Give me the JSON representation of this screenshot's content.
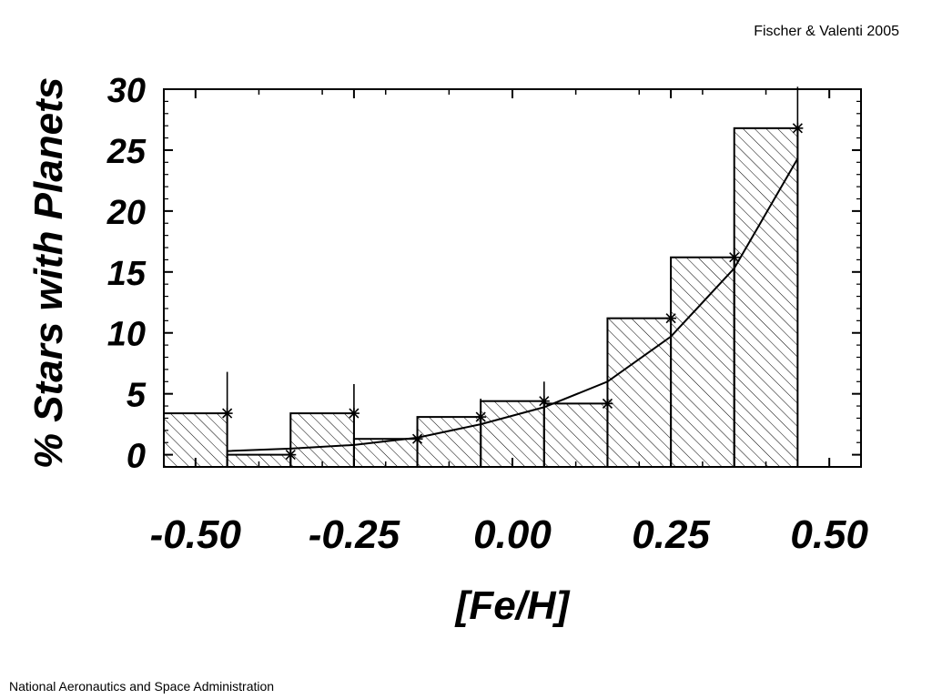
{
  "header": {
    "credit": "Fischer & Valenti 2005"
  },
  "footer": {
    "credit": "National Aeronautics and Space Administration"
  },
  "chart_data": {
    "type": "bar",
    "title": "",
    "xlabel": "[Fe/H]",
    "ylabel": "% Stars with Planets",
    "xlim": [
      -0.55,
      0.55
    ],
    "ylim": [
      -1,
      30
    ],
    "x_ticks": [
      -0.5,
      -0.25,
      0.0,
      0.25,
      0.5
    ],
    "x_tick_labels": [
      "-0.50",
      "-0.25",
      "0.00",
      "0.25",
      "0.50"
    ],
    "y_ticks": [
      0,
      5,
      10,
      15,
      20,
      25,
      30
    ],
    "y_tick_labels": [
      "0",
      "5",
      "10",
      "15",
      "20",
      "25",
      "30"
    ],
    "bin_edges": [
      -0.55,
      -0.45,
      -0.35,
      -0.25,
      -0.15,
      -0.05,
      0.05,
      0.15,
      0.25,
      0.35,
      0.45,
      0.55
    ],
    "bin_centers": [
      -0.5,
      -0.4,
      -0.3,
      -0.2,
      -0.1,
      0.0,
      0.1,
      0.2,
      0.3,
      0.4,
      0.5
    ],
    "values": [
      3.4,
      0.0,
      3.4,
      1.3,
      3.1,
      4.4,
      4.2,
      11.2,
      16.2,
      26.8,
      null
    ],
    "hatched": true,
    "error_bars": {
      "x": [
        -0.45,
        -0.35,
        -0.25,
        -0.15,
        -0.05,
        0.05,
        0.15,
        0.25,
        0.35,
        0.45
      ],
      "y": [
        3.4,
        0.0,
        3.4,
        1.3,
        3.1,
        4.4,
        4.2,
        11.2,
        16.2,
        26.8
      ],
      "lower": [
        0.0,
        0.0,
        1.0,
        0.5,
        1.5,
        2.9,
        2.3,
        7.7,
        11.0,
        13.3
      ],
      "upper": [
        6.8,
        3.4,
        5.8,
        2.4,
        4.6,
        6.0,
        5.8,
        14.5,
        21.3,
        30.2
      ]
    },
    "fit_curve": {
      "x": [
        -0.45,
        -0.35,
        -0.25,
        -0.15,
        -0.05,
        0.05,
        0.15,
        0.25,
        0.35,
        0.45
      ],
      "y": [
        0.3,
        0.5,
        0.8,
        1.4,
        2.5,
        3.9,
        6.0,
        9.7,
        15.3,
        24.3
      ]
    },
    "grid": false,
    "legend": "none"
  }
}
